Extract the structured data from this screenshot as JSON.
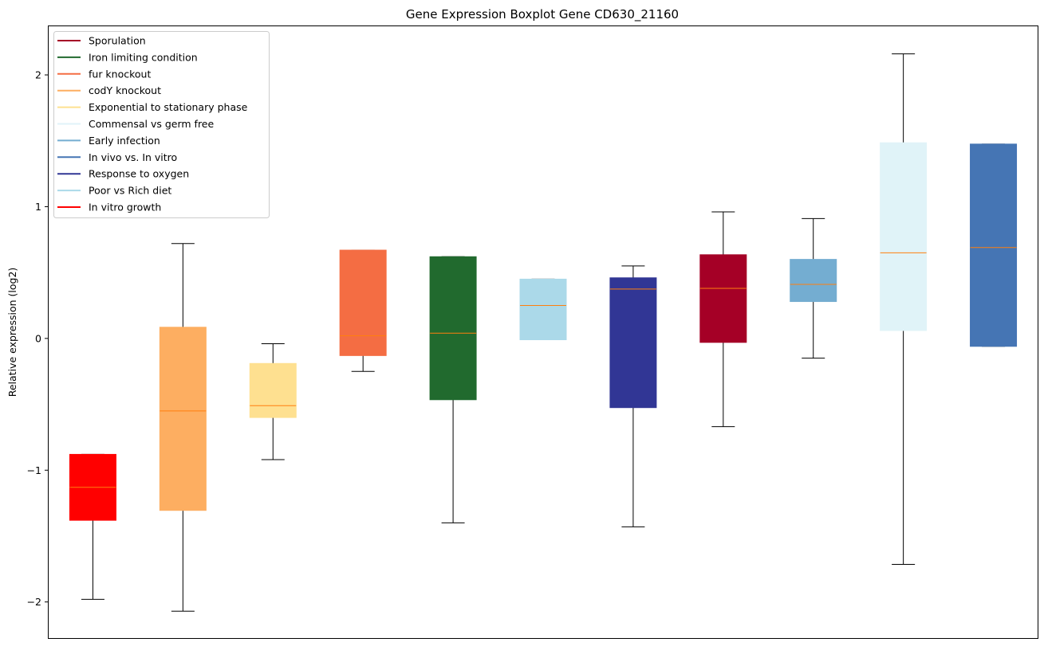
{
  "chart_data": {
    "type": "boxplot",
    "title": "Gene Expression Boxplot Gene CD630_21160",
    "xlabel": "",
    "ylabel": "Relative expression (log2)",
    "ylim": [
      -2.28,
      2.375
    ],
    "yticks": [
      -2,
      -1,
      0,
      1,
      2
    ],
    "ytick_labels": [
      "−2",
      "−1",
      "0",
      "1",
      "2"
    ],
    "grid": false,
    "legend_position": "top-left",
    "median_color": "#ff7f0e",
    "legend": [
      {
        "label": "Sporulation",
        "color": "#a50026"
      },
      {
        "label": "Iron limiting condition",
        "color": "#216a2e"
      },
      {
        "label": "fur knockout",
        "color": "#f46d43"
      },
      {
        "label": "codY knockout",
        "color": "#fdae61"
      },
      {
        "label": "Exponential to stationary phase",
        "color": "#fee090"
      },
      {
        "label": "Commensal vs germ free",
        "color": "#e0f3f8"
      },
      {
        "label": "Early infection",
        "color": "#74add1"
      },
      {
        "label": "In vivo vs. In vitro",
        "color": "#4575b4"
      },
      {
        "label": "Response to oxygen",
        "color": "#313695"
      },
      {
        "label": "Poor vs Rich diet",
        "color": "#abd9e9"
      },
      {
        "label": "In vitro growth",
        "color": "#ff0000"
      }
    ],
    "boxes": [
      {
        "name": "In vitro growth",
        "color": "#ff0000",
        "min": -1.98,
        "q1": -1.38,
        "median": -1.13,
        "q3": -0.88,
        "max": -0.88
      },
      {
        "name": "codY knockout",
        "color": "#fdae61",
        "min": -2.07,
        "q1": -1.305,
        "median": -0.55,
        "q3": 0.085,
        "max": 0.72
      },
      {
        "name": "Exponential to stationary phase",
        "color": "#fee090",
        "min": -0.92,
        "q1": -0.6,
        "median": -0.51,
        "q3": -0.19,
        "max": -0.04
      },
      {
        "name": "fur knockout",
        "color": "#f46d43",
        "min": -0.25,
        "q1": -0.13,
        "median": 0.02,
        "q3": 0.67,
        "max": 0.67
      },
      {
        "name": "Iron limiting condition",
        "color": "#216a2e",
        "min": -1.4,
        "q1": -0.465,
        "median": 0.04,
        "q3": 0.62,
        "max": 0.62
      },
      {
        "name": "Poor vs Rich diet",
        "color": "#abd9e9",
        "min": -0.01,
        "q1": -0.01,
        "median": 0.25,
        "q3": 0.45,
        "max": 0.45
      },
      {
        "name": "Response to oxygen",
        "color": "#313695",
        "min": -1.43,
        "q1": -0.525,
        "median": 0.375,
        "q3": 0.46,
        "max": 0.55
      },
      {
        "name": "Sporulation",
        "color": "#a50026",
        "min": -0.67,
        "q1": -0.03,
        "median": 0.38,
        "q3": 0.635,
        "max": 0.96
      },
      {
        "name": "Early infection",
        "color": "#74add1",
        "min": -0.15,
        "q1": 0.28,
        "median": 0.41,
        "q3": 0.6,
        "max": 0.91
      },
      {
        "name": "Commensal vs germ free",
        "color": "#e0f3f8",
        "min": -1.715,
        "q1": 0.06,
        "median": 0.65,
        "q3": 1.485,
        "max": 2.16
      },
      {
        "name": "In vivo vs. In vitro",
        "color": "#4575b4",
        "min": -0.06,
        "q1": -0.06,
        "median": 0.69,
        "q3": 1.475,
        "max": 1.475
      }
    ]
  }
}
